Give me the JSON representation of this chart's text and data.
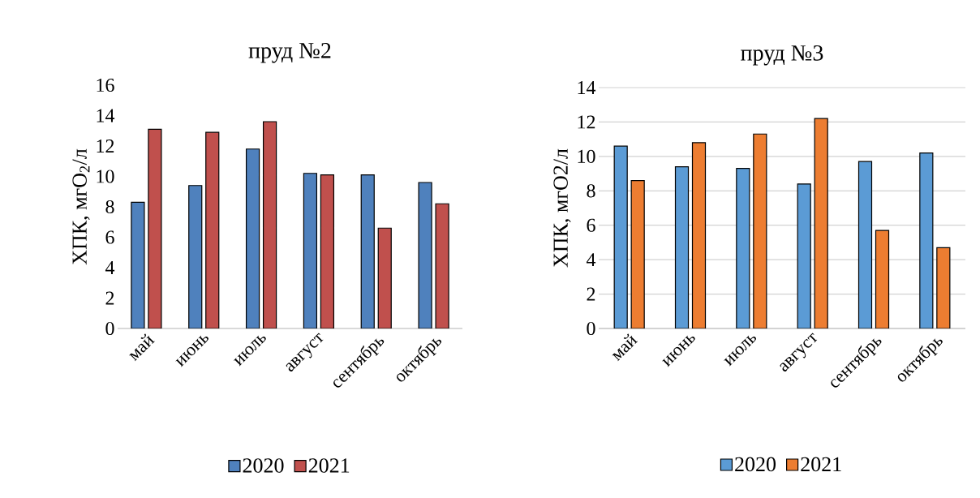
{
  "chart_data": [
    {
      "type": "bar",
      "title": "пруд №2",
      "ylabel": "ХПК, мгО$_{2}$/л",
      "categories": [
        "май",
        "июнь",
        "июль",
        "август",
        "сентябрь",
        "октябрь"
      ],
      "series": [
        {
          "name": "2020",
          "color": "#4f81bd",
          "values": [
            8.3,
            9.4,
            11.8,
            10.2,
            10.1,
            9.6
          ]
        },
        {
          "name": "2021",
          "color": "#c0504d",
          "values": [
            13.1,
            12.9,
            13.6,
            10.1,
            6.6,
            8.2
          ]
        }
      ],
      "ylim": [
        0,
        16
      ],
      "yticks": [
        0,
        2,
        4,
        6,
        8,
        10,
        12,
        14,
        16
      ],
      "grid": false,
      "legend": "bottom"
    },
    {
      "type": "bar",
      "title": "пруд №3",
      "ylabel": "ХПК, мгО2/л",
      "categories": [
        "май",
        "июнь",
        "июль",
        "август",
        "сентябрь",
        "октябрь"
      ],
      "series": [
        {
          "name": "2020",
          "color": "#5b9bd5",
          "values": [
            10.6,
            9.4,
            9.3,
            8.4,
            9.7,
            10.2
          ]
        },
        {
          "name": "2021",
          "color": "#ed7d31",
          "values": [
            8.6,
            10.8,
            11.3,
            12.2,
            5.7,
            4.7
          ]
        }
      ],
      "ylim": [
        0,
        14
      ],
      "yticks": [
        0,
        2,
        4,
        6,
        8,
        10,
        12,
        14
      ],
      "grid": "y",
      "legend": "bottom"
    }
  ]
}
